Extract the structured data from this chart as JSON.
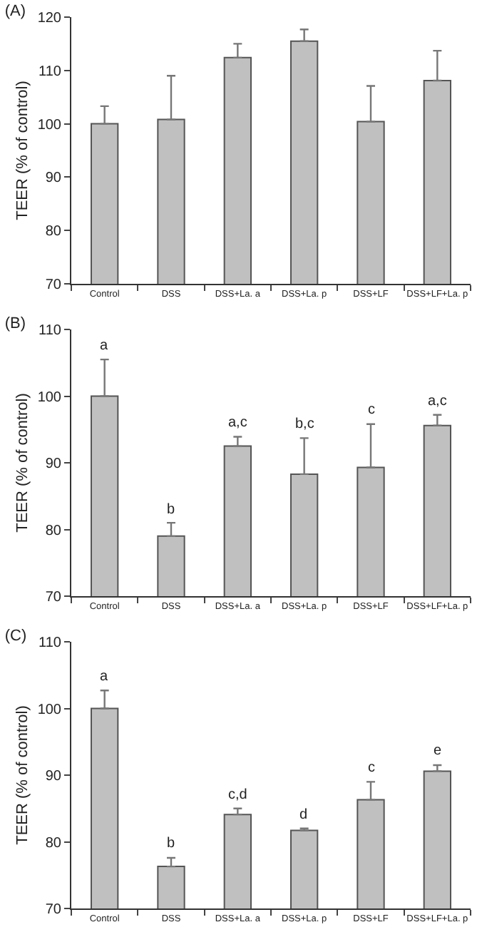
{
  "chart_data": [
    {
      "type": "bar",
      "title": "(A)",
      "ylabel": "TEER (% of control)",
      "categories": [
        "Control",
        "DSS",
        "DSS+La. a",
        "DSS+La. p",
        "DSS+LF",
        "DSS+LF+La. p"
      ],
      "values": [
        100,
        100.8,
        112.4,
        115.5,
        100.4,
        108.1
      ],
      "errors": [
        [
          100,
          103.3
        ],
        [
          100.8,
          109
        ],
        [
          112.4,
          115
        ],
        [
          115.5,
          117.7
        ],
        [
          100.4,
          107.1
        ],
        [
          108.1,
          113.7
        ]
      ],
      "color": "#c0c0c0",
      "ylim": [
        70,
        120
      ],
      "yticks": [
        70,
        80,
        90,
        100,
        110,
        120
      ]
    },
    {
      "type": "bar",
      "title": "(B)",
      "ylabel": "TEER (% of control)",
      "categories": [
        "Control",
        "DSS",
        "DSS+La. a",
        "DSS+La. p",
        "DSS+LF",
        "DSS+LF+La. p"
      ],
      "values": [
        100,
        79,
        92.5,
        88.3,
        89.3,
        95.6
      ],
      "errors": [
        [
          100,
          105.5
        ],
        [
          79,
          81
        ],
        [
          92.5,
          93.9
        ],
        [
          88.3,
          93.7
        ],
        [
          89.3,
          95.8
        ],
        [
          95.6,
          97.2
        ]
      ],
      "color": "#c0c0c0",
      "ylim": [
        70,
        110
      ],
      "yticks": [
        70,
        80,
        90,
        100,
        110
      ],
      "annotations": [
        {
          "text": "a",
          "x": "Control",
          "y": 105.5
        },
        {
          "text": "b",
          "x": "DSS",
          "y": 81
        },
        {
          "text": "a,c",
          "x": "DSS+La. a",
          "y": 93.9
        },
        {
          "text": "b,c",
          "x": "DSS+La. p",
          "y": 93.7
        },
        {
          "text": "c",
          "x": "DSS+LF",
          "y": 95.8
        },
        {
          "text": "a,c",
          "x": "DSS+LF+La. p",
          "y": 97.2
        }
      ]
    },
    {
      "type": "bar",
      "title": "(C)",
      "ylabel": "TEER (% of control)",
      "categories": [
        "Control",
        "DSS",
        "DSS+La. a",
        "DSS+La. p",
        "DSS+LF",
        "DSS+LF+La. p"
      ],
      "values": [
        100,
        76.3,
        84.1,
        81.7,
        86.3,
        90.6
      ],
      "errors": [
        [
          100,
          102.7
        ],
        [
          76.3,
          77.6
        ],
        [
          84.1,
          85
        ],
        [
          81.7,
          82
        ],
        [
          86.3,
          89
        ],
        [
          90.6,
          91.5
        ]
      ],
      "color": "#c0c0c0",
      "ylim": [
        70,
        110
      ],
      "yticks": [
        70,
        80,
        90,
        100,
        110
      ],
      "annotations": [
        {
          "text": "a",
          "x": "Control",
          "y": 102.7
        },
        {
          "text": "b",
          "x": "DSS",
          "y": 77.6
        },
        {
          "text": "c,d",
          "x": "DSS+La. a",
          "y": 85
        },
        {
          "text": "d",
          "x": "DSS+La. p",
          "y": 82
        },
        {
          "text": "c",
          "x": "DSS+LF",
          "y": 89
        },
        {
          "text": "e",
          "x": "DSS+LF+La. p",
          "y": 91.5
        }
      ]
    }
  ]
}
